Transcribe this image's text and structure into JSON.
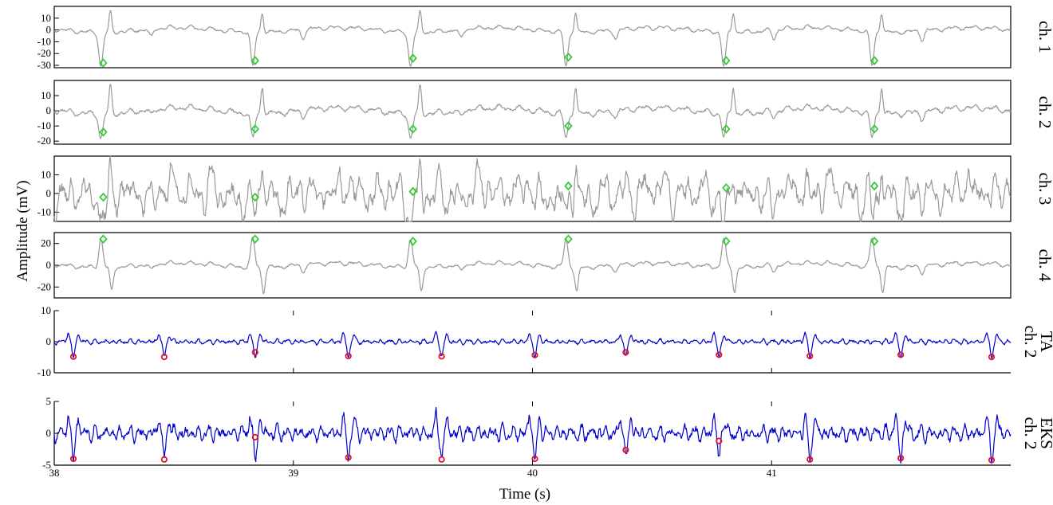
{
  "figure": {
    "ylabel": "Amplitude (mV)",
    "xlabel": "Time (s)"
  },
  "colors": {
    "abdominal_trace": "#999999",
    "filtered_trace": "#0000cc",
    "fetal_marker": "#33cc33",
    "maternal_marker": "#e8102a",
    "axes": "#000000"
  },
  "chart_data": [
    {
      "type": "line",
      "channel_label": "ch. 1",
      "ylim": [
        -32,
        20
      ],
      "yticks": [
        10,
        0,
        -10,
        -20,
        -30
      ],
      "xlim": [
        38,
        42
      ],
      "markers": {
        "shape": "diamond",
        "x": [
          38.205,
          38.84,
          39.5,
          40.15,
          40.81,
          41.43
        ],
        "y": [
          -28,
          -26,
          -24,
          -23,
          -26,
          -26
        ]
      },
      "signal": {
        "template": "fetal_peak_down",
        "peak_amplitude": 17,
        "trough_amplitude": -29,
        "noise": 1.2
      }
    },
    {
      "type": "line",
      "channel_label": "ch. 2",
      "ylim": [
        -22,
        20
      ],
      "yticks": [
        10,
        0,
        -10,
        -20
      ],
      "xlim": [
        38,
        42
      ],
      "markers": {
        "shape": "diamond",
        "x": [
          38.205,
          38.84,
          39.5,
          40.15,
          40.81,
          41.43
        ],
        "y": [
          -14,
          -12,
          -12,
          -10,
          -12,
          -12
        ]
      },
      "signal": {
        "template": "fetal_peak_down",
        "peak_amplitude": 18,
        "trough_amplitude": -16,
        "noise": 1.3
      }
    },
    {
      "type": "line",
      "channel_label": "ch. 3",
      "ylim": [
        -15,
        20
      ],
      "yticks": [
        10,
        0,
        -10
      ],
      "xlim": [
        38,
        42
      ],
      "markers": {
        "shape": "diamond",
        "x": [
          38.205,
          38.84,
          39.5,
          40.15,
          40.81,
          41.43
        ],
        "y": [
          -2,
          -2,
          1,
          4,
          3,
          4
        ]
      },
      "signal": {
        "template": "noisy",
        "peak_amplitude": 14,
        "trough_amplitude": -12,
        "noise": 5
      }
    },
    {
      "type": "line",
      "channel_label": "ch. 4",
      "ylim": [
        -30,
        30
      ],
      "yticks": [
        20,
        0,
        -20
      ],
      "xlim": [
        38,
        42
      ],
      "markers": {
        "shape": "diamond",
        "x": [
          38.205,
          38.84,
          39.5,
          40.15,
          40.81,
          41.43
        ],
        "y": [
          24,
          24,
          22,
          24,
          22,
          22
        ]
      },
      "signal": {
        "template": "fetal_peak_up",
        "peak_amplitude": 26,
        "trough_amplitude": -22,
        "noise": 1.3
      }
    },
    {
      "type": "line",
      "channel_label": "TA ch. 2",
      "ylim": [
        -10,
        10
      ],
      "yticks": [
        10,
        0,
        -10
      ],
      "xlim": [
        38,
        42
      ],
      "markers": {
        "shape": "circle",
        "x": [
          38.08,
          38.46,
          38.84,
          39.23,
          39.62,
          40.01,
          40.39,
          40.78,
          41.16,
          41.54,
          41.92
        ],
        "y": [
          -4.8,
          -4.9,
          -3.4,
          -4.6,
          -4.7,
          -4.3,
          -3.4,
          -4.2,
          -4.6,
          -4.2,
          -4.9
        ]
      },
      "signal": {
        "template": "filtered",
        "peak_amplitude": 3,
        "trough_amplitude": -5,
        "noise": 0.6
      }
    },
    {
      "type": "line",
      "channel_label": "EKS ch. 2",
      "ylim": [
        -5,
        5
      ],
      "yticks": [
        5,
        0,
        -5
      ],
      "xlim": [
        38,
        42
      ],
      "xticks": [
        38,
        39,
        40,
        41
      ],
      "markers": {
        "shape": "circle",
        "x": [
          38.08,
          38.46,
          38.84,
          39.23,
          39.62,
          40.01,
          40.39,
          40.78,
          41.16,
          41.54,
          41.92
        ],
        "y": [
          -4.0,
          -4.1,
          -0.6,
          -3.8,
          -4.1,
          -4.0,
          -2.6,
          -1.2,
          -4.1,
          -3.9,
          -4.2
        ]
      },
      "signal": {
        "template": "filtered",
        "peak_amplitude": 3,
        "trough_amplitude": -4,
        "noise": 0.9
      }
    }
  ]
}
